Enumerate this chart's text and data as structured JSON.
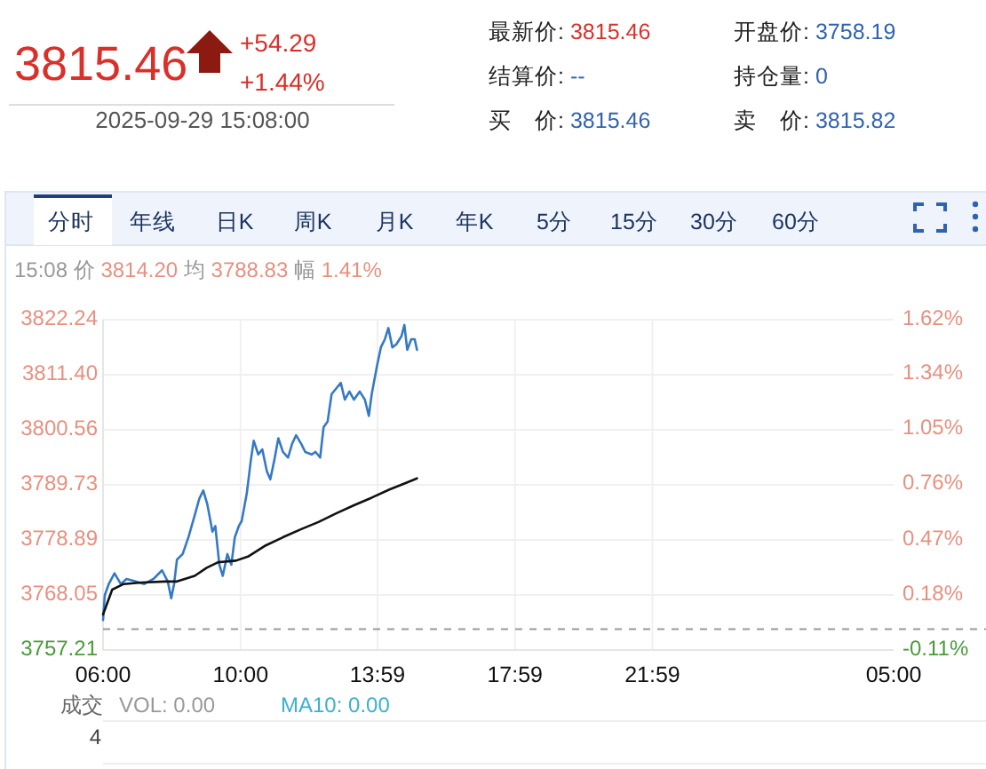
{
  "chart_data": [
    {
      "type": "other",
      "annotations": [
        "3815.46",
        "+54.29",
        "+1.44%",
        "2025-09-29 15:08:00",
        "最新价: 3815.46",
        "结算价: --",
        "买　价: 3815.46",
        "开盘价: 3758.19",
        "持仓量: 0",
        "卖　价: 3815.82"
      ]
    },
    {
      "type": "other",
      "annotations": [
        "分时",
        "年线",
        "日K",
        "周K",
        "月K",
        "年K",
        "5分",
        "15分",
        "30分",
        "60分"
      ]
    },
    {
      "type": "line",
      "subtitle": "15:08 价 3814.20 均 3788.83 幅 1.41%",
      "xlim": [
        "2025-09-29T06:00",
        "2025-09-30T05:00"
      ],
      "xticks": [
        {
          "value": "2025-09-29T06:00",
          "label": "06:00"
        },
        {
          "value": "2025-09-29T10:00",
          "label": "10:00"
        },
        {
          "value": "2025-09-29T13:59",
          "label": "13:59"
        },
        {
          "value": "2025-09-29T17:59",
          "label": "17:59"
        },
        {
          "value": "2025-09-29T21:59",
          "label": "21:59"
        },
        {
          "value": "2025-09-30T05:00",
          "label": "05:00"
        }
      ],
      "ylim": [
        3757.21,
        3822.24
      ],
      "yticks": [
        3757.21,
        3768.05,
        3778.89,
        3789.73,
        3800.56,
        {
          "value": 3811.4,
          "label": "3811.40"
        },
        3822.24
      ],
      "y2lim": [
        -0.11,
        1.62
      ],
      "y2ticks": [
        {
          "value": -0.11,
          "label": "-0.11%"
        },
        {
          "value": 0.18,
          "label": "0.18%"
        },
        {
          "value": 0.47,
          "label": "0.47%"
        },
        {
          "value": 0.76,
          "label": "0.76%"
        },
        {
          "value": 1.05,
          "label": "1.05%"
        },
        {
          "value": 1.34,
          "label": "1.34%"
        },
        {
          "value": 1.62,
          "label": "1.62%"
        }
      ],
      "grid": true,
      "ref_lines": [
        {
          "axis": "y",
          "value": 3761.3,
          "color": "#999999",
          "line_style": "dashed"
        }
      ],
      "series": [
        {
          "color": "#3579c6",
          "x": [
            "2025-09-29T06:00",
            "2025-09-29T06:03",
            "2025-09-29T06:10",
            "2025-09-29T06:20",
            "2025-09-29T06:31",
            "2025-09-29T06:41",
            "2025-09-29T06:57",
            "2025-09-29T07:12",
            "2025-09-29T07:28",
            "2025-09-29T07:43",
            "2025-09-29T07:53",
            "2025-09-29T07:59",
            "2025-09-29T08:04",
            "2025-09-29T08:09",
            "2025-09-29T08:19",
            "2025-09-29T08:29",
            "2025-09-29T08:40",
            "2025-09-29T08:48",
            "2025-09-29T08:55",
            "2025-09-29T09:02",
            "2025-09-29T09:11",
            "2025-09-29T09:16",
            "2025-09-29T09:23",
            "2025-09-29T09:29",
            "2025-09-29T09:37",
            "2025-09-29T09:44",
            "2025-09-29T09:50",
            "2025-09-29T09:57",
            "2025-09-29T10:02",
            "2025-09-29T10:11",
            "2025-09-29T10:18",
            "2025-09-29T10:23",
            "2025-09-29T10:31",
            "2025-09-29T10:38",
            "2025-09-29T10:46",
            "2025-09-29T10:52",
            "2025-09-29T10:59",
            "2025-09-29T11:06",
            "2025-09-29T11:14",
            "2025-09-29T11:23",
            "2025-09-29T11:30",
            "2025-09-29T11:37",
            "2025-09-29T11:46",
            "2025-09-29T11:53",
            "2025-09-29T12:04",
            "2025-09-29T12:11",
            "2025-09-29T12:19",
            "2025-09-29T12:25",
            "2025-09-29T12:32",
            "2025-09-29T12:39",
            "2025-09-29T12:47",
            "2025-09-29T12:55",
            "2025-09-29T13:02",
            "2025-09-29T13:10",
            "2025-09-29T13:18",
            "2025-09-29T13:28",
            "2025-09-29T13:37",
            "2025-09-29T13:44",
            "2025-09-29T13:49",
            "2025-09-29T13:58",
            "2025-09-29T14:05",
            "2025-09-29T14:12",
            "2025-09-29T14:18",
            "2025-09-29T14:25",
            "2025-09-29T14:32",
            "2025-09-29T14:41",
            "2025-09-29T14:46",
            "2025-09-29T14:51",
            "2025-09-29T14:58",
            "2025-09-29T15:04",
            "2025-09-29T15:08"
          ],
          "values": [
            3763.1,
            3768.0,
            3770.2,
            3772.3,
            3770.2,
            3771.2,
            3770.7,
            3770.2,
            3771.2,
            3772.9,
            3770.7,
            3767.4,
            3770.2,
            3775.0,
            3776.1,
            3779.4,
            3783.7,
            3787.0,
            3788.6,
            3785.9,
            3780.5,
            3781.6,
            3774.0,
            3771.8,
            3776.1,
            3774.0,
            3779.4,
            3781.6,
            3782.6,
            3788.1,
            3794.6,
            3798.4,
            3795.7,
            3796.7,
            3792.4,
            3790.8,
            3794.6,
            3798.9,
            3796.2,
            3795.1,
            3797.8,
            3799.5,
            3797.8,
            3796.2,
            3795.7,
            3796.2,
            3795.1,
            3801.1,
            3802.2,
            3807.6,
            3808.7,
            3809.8,
            3806.5,
            3808.1,
            3806.5,
            3808.1,
            3806.5,
            3803.3,
            3807.6,
            3813.0,
            3816.8,
            3818.4,
            3820.6,
            3816.8,
            3817.4,
            3819.0,
            3821.2,
            3816.3,
            3818.4,
            3818.4,
            3816.3
          ]
        },
        {
          "color": "#111111",
          "x": [
            "2025-09-29T06:00",
            "2025-09-29T06:16",
            "2025-09-29T06:36",
            "2025-09-29T07:07",
            "2025-09-29T07:48",
            "2025-09-29T08:09",
            "2025-09-29T08:40",
            "2025-09-29T09:01",
            "2025-09-29T09:21",
            "2025-09-29T09:52",
            "2025-09-29T10:13",
            "2025-09-29T10:44",
            "2025-09-29T11:14",
            "2025-09-29T11:46",
            "2025-09-29T12:16",
            "2025-09-29T12:47",
            "2025-09-29T13:18",
            "2025-09-29T13:49",
            "2025-09-29T14:20",
            "2025-09-29T14:51",
            "2025-09-29T15:08"
          ],
          "values": [
            3764.2,
            3769.1,
            3770.2,
            3770.5,
            3770.7,
            3770.7,
            3771.8,
            3773.4,
            3774.5,
            3774.8,
            3775.6,
            3777.8,
            3779.4,
            3781.0,
            3782.4,
            3784.1,
            3785.7,
            3787.2,
            3788.8,
            3790.2,
            3791.0
          ]
        }
      ]
    },
    {
      "type": "other",
      "annotations": [
        "成交",
        "4",
        "VOL: 0.00",
        "MA10: 0.00"
      ]
    }
  ]
}
